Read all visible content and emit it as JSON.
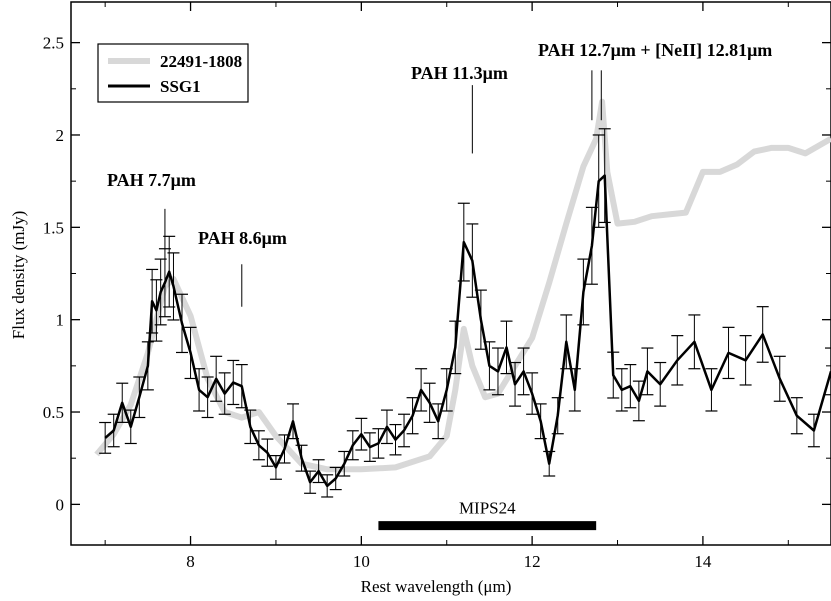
{
  "chart_data": {
    "type": "line",
    "xlabel": "Rest wavelength (μm)",
    "ylabel": "Flux density (mJy)",
    "xlim": [
      6.6,
      15.5
    ],
    "ylim": [
      -0.22,
      2.72
    ],
    "x_ticks": [
      8,
      10,
      12,
      14
    ],
    "y_ticks": [
      0,
      0.5,
      1,
      1.5,
      2,
      2.5
    ],
    "x_tick_labels": [
      "8",
      "10",
      "12",
      "14"
    ],
    "y_tick_labels": [
      "0",
      "0.5",
      "1",
      "1.5",
      "2",
      "2.5"
    ],
    "grid": false,
    "legend": {
      "placement": "top-left",
      "entries": [
        "22491-1808",
        "SSG1"
      ]
    },
    "series": [
      {
        "name": "22491-1808",
        "color": "#d8d8d8",
        "x": [
          6.9,
          7.1,
          7.3,
          7.5,
          7.7,
          7.8,
          8.0,
          8.2,
          8.4,
          8.6,
          8.8,
          9.0,
          9.3,
          9.6,
          10.0,
          10.4,
          10.8,
          11.0,
          11.1,
          11.2,
          11.3,
          11.45,
          11.6,
          11.8,
          12.0,
          12.2,
          12.4,
          12.6,
          12.75,
          12.82,
          12.88,
          13.0,
          13.2,
          13.4,
          13.6,
          13.8,
          14.0,
          14.2,
          14.4,
          14.6,
          14.8,
          15.0,
          15.2,
          15.5
        ],
        "y": [
          0.27,
          0.38,
          0.54,
          0.82,
          1.18,
          1.22,
          1.02,
          0.68,
          0.5,
          0.47,
          0.5,
          0.37,
          0.22,
          0.19,
          0.19,
          0.2,
          0.26,
          0.37,
          0.62,
          0.95,
          0.75,
          0.58,
          0.6,
          0.75,
          0.9,
          1.2,
          1.52,
          1.83,
          1.98,
          2.18,
          1.8,
          1.52,
          1.53,
          1.56,
          1.57,
          1.58,
          1.8,
          1.8,
          1.84,
          1.91,
          1.93,
          1.93,
          1.9,
          1.98
        ]
      },
      {
        "name": "SSG1",
        "color": "#000000",
        "x": [
          7.0,
          7.1,
          7.2,
          7.3,
          7.4,
          7.5,
          7.55,
          7.6,
          7.65,
          7.7,
          7.75,
          7.8,
          7.9,
          8.0,
          8.1,
          8.2,
          8.3,
          8.4,
          8.5,
          8.6,
          8.7,
          8.8,
          8.9,
          9.0,
          9.1,
          9.2,
          9.3,
          9.4,
          9.5,
          9.6,
          9.7,
          9.8,
          9.9,
          10.0,
          10.1,
          10.2,
          10.3,
          10.4,
          10.5,
          10.6,
          10.7,
          10.8,
          10.9,
          11.0,
          11.1,
          11.2,
          11.3,
          11.4,
          11.5,
          11.6,
          11.7,
          11.8,
          11.9,
          12.0,
          12.1,
          12.2,
          12.3,
          12.4,
          12.5,
          12.6,
          12.7,
          12.78,
          12.85,
          12.95,
          13.05,
          13.15,
          13.25,
          13.35,
          13.5,
          13.7,
          13.9,
          14.1,
          14.3,
          14.5,
          14.7,
          14.9,
          15.1,
          15.3,
          15.5
        ],
        "y": [
          0.36,
          0.4,
          0.55,
          0.42,
          0.58,
          0.75,
          1.1,
          1.05,
          1.15,
          1.2,
          1.26,
          1.18,
          0.98,
          0.82,
          0.62,
          0.58,
          0.68,
          0.6,
          0.66,
          0.64,
          0.42,
          0.32,
          0.28,
          0.2,
          0.3,
          0.45,
          0.25,
          0.12,
          0.18,
          0.1,
          0.14,
          0.22,
          0.32,
          0.38,
          0.31,
          0.33,
          0.42,
          0.35,
          0.4,
          0.48,
          0.62,
          0.55,
          0.45,
          0.62,
          0.85,
          1.42,
          1.32,
          1.0,
          0.75,
          0.72,
          0.85,
          0.65,
          0.72,
          0.6,
          0.45,
          0.22,
          0.48,
          0.88,
          0.62,
          1.15,
          1.4,
          1.75,
          1.78,
          0.7,
          0.62,
          0.64,
          0.56,
          0.72,
          0.65,
          0.78,
          0.88,
          0.62,
          0.82,
          0.78,
          0.92,
          0.68,
          0.48,
          0.4,
          0.72
        ]
      }
    ],
    "annotations": [
      {
        "text": "PAH 7.7μm",
        "x": 7.7
      },
      {
        "text": "PAH 8.6μm",
        "x": 8.6
      },
      {
        "text": "PAH 11.3μm",
        "x": 11.3
      },
      {
        "text": "PAH 12.7μm + [NeII] 12.81μm",
        "x": [
          12.7,
          12.81
        ]
      }
    ],
    "band": {
      "label": "MIPS24",
      "x": [
        10.2,
        12.75
      ],
      "y": -0.115
    }
  }
}
